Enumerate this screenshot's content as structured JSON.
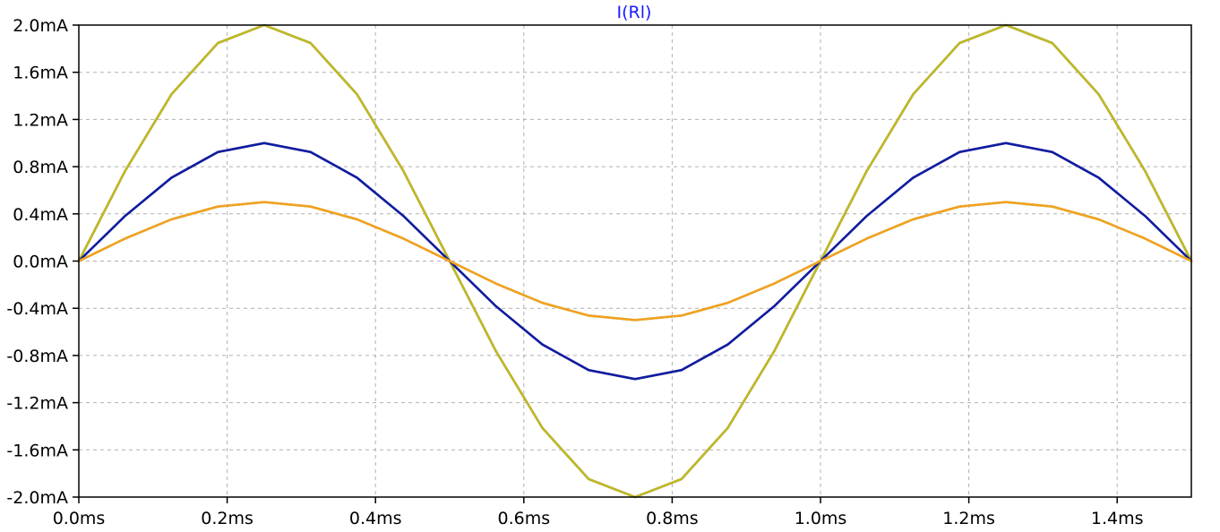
{
  "chart_data": {
    "type": "line",
    "title": "I(Rl)",
    "xlabel": "",
    "ylabel": "",
    "xlim": [
      0,
      1.5
    ],
    "ylim": [
      -2.0,
      2.0
    ],
    "grid": true,
    "x_ticks": [
      0.0,
      0.2,
      0.4,
      0.6,
      0.8,
      1.0,
      1.2,
      1.4
    ],
    "x_tick_labels": [
      "0.0ms",
      "0.2ms",
      "0.4ms",
      "0.6ms",
      "0.8ms",
      "1.0ms",
      "1.2ms",
      "1.4ms"
    ],
    "y_ticks": [
      2.0,
      1.6,
      1.2,
      0.8,
      0.4,
      0.0,
      -0.4,
      -0.8,
      -1.2,
      -1.6,
      -2.0
    ],
    "y_tick_labels": [
      "2.0mA",
      "1.6mA",
      "1.2mA",
      "0.8mA",
      "0.4mA",
      "0.0mA",
      "-0.4mA",
      "-0.8mA",
      "-1.2mA",
      "-1.6mA",
      "-2.0mA"
    ],
    "x_unit": "ms",
    "y_unit": "mA",
    "series": [
      {
        "amplitude": 2.0,
        "frequency_hz": 1000,
        "color": "#8b1a1a",
        "x": [
          0,
          0.0625,
          0.125,
          0.1875,
          0.25,
          0.3125,
          0.375,
          0.4375,
          0.5,
          0.5625,
          0.625,
          0.6875,
          0.75,
          0.8125,
          0.875,
          0.9375,
          1.0,
          1.0625,
          1.125,
          1.1875,
          1.25,
          1.3125,
          1.375,
          1.4375,
          1.5
        ],
        "values": [
          0,
          0.765,
          1.414,
          1.848,
          2.0,
          1.848,
          1.414,
          0.765,
          0,
          -0.765,
          -1.414,
          -1.848,
          -2.0,
          -1.848,
          -1.414,
          -0.765,
          0,
          0.765,
          1.414,
          1.848,
          2.0,
          1.848,
          1.414,
          0.765,
          0
        ]
      },
      {
        "amplitude": 2.0,
        "frequency_hz": 1000,
        "color": "#bcbc22",
        "x": [
          0,
          0.0625,
          0.125,
          0.1875,
          0.25,
          0.3125,
          0.375,
          0.4375,
          0.5,
          0.5625,
          0.625,
          0.6875,
          0.75,
          0.8125,
          0.875,
          0.9375,
          1.0,
          1.0625,
          1.125,
          1.1875,
          1.25,
          1.3125,
          1.375,
          1.4375,
          1.5
        ],
        "values": [
          0,
          0.765,
          1.414,
          1.848,
          2.0,
          1.848,
          1.414,
          0.765,
          0,
          -0.765,
          -1.414,
          -1.848,
          -2.0,
          -1.848,
          -1.414,
          -0.765,
          0,
          0.765,
          1.414,
          1.848,
          2.0,
          1.848,
          1.414,
          0.765,
          0
        ]
      },
      {
        "amplitude": 1.0,
        "frequency_hz": 1000,
        "color": "#8b008b",
        "x": [
          0,
          0.0625,
          0.125,
          0.1875,
          0.25,
          0.3125,
          0.375,
          0.4375,
          0.5,
          0.5625,
          0.625,
          0.6875,
          0.75,
          0.8125,
          0.875,
          0.9375,
          1.0,
          1.0625,
          1.125,
          1.1875,
          1.25,
          1.3125,
          1.375,
          1.4375,
          1.5
        ],
        "values": [
          0,
          0.383,
          0.707,
          0.924,
          1.0,
          0.924,
          0.707,
          0.383,
          0,
          -0.383,
          -0.707,
          -0.924,
          -1.0,
          -0.924,
          -0.707,
          -0.383,
          0,
          0.383,
          0.707,
          0.924,
          1.0,
          0.924,
          0.707,
          0.383,
          0
        ]
      },
      {
        "amplitude": 1.0,
        "frequency_hz": 1000,
        "color": "#0a1fa0",
        "x": [
          0,
          0.0625,
          0.125,
          0.1875,
          0.25,
          0.3125,
          0.375,
          0.4375,
          0.5,
          0.5625,
          0.625,
          0.6875,
          0.75,
          0.8125,
          0.875,
          0.9375,
          1.0,
          1.0625,
          1.125,
          1.1875,
          1.25,
          1.3125,
          1.375,
          1.4375,
          1.5
        ],
        "values": [
          0,
          0.383,
          0.707,
          0.924,
          1.0,
          0.924,
          0.707,
          0.383,
          0,
          -0.383,
          -0.707,
          -0.924,
          -1.0,
          -0.924,
          -0.707,
          -0.383,
          0,
          0.383,
          0.707,
          0.924,
          1.0,
          0.924,
          0.707,
          0.383,
          0
        ]
      },
      {
        "amplitude": 0.5,
        "frequency_hz": 1000,
        "color": "#5ab82a",
        "x": [
          0,
          0.0625,
          0.125,
          0.1875,
          0.25,
          0.3125,
          0.375,
          0.4375,
          0.5,
          0.5625,
          0.625,
          0.6875,
          0.75,
          0.8125,
          0.875,
          0.9375,
          1.0,
          1.0625,
          1.125,
          1.1875,
          1.25,
          1.3125,
          1.375,
          1.4375,
          1.5
        ],
        "values": [
          0,
          0.191,
          0.354,
          0.462,
          0.5,
          0.462,
          0.354,
          0.191,
          0,
          -0.191,
          -0.354,
          -0.462,
          -0.5,
          -0.462,
          -0.354,
          -0.191,
          0,
          0.191,
          0.354,
          0.462,
          0.5,
          0.462,
          0.354,
          0.191,
          0
        ]
      },
      {
        "amplitude": 0.5,
        "frequency_hz": 1000,
        "color": "#f5a020",
        "x": [
          0,
          0.0625,
          0.125,
          0.1875,
          0.25,
          0.3125,
          0.375,
          0.4375,
          0.5,
          0.5625,
          0.625,
          0.6875,
          0.75,
          0.8125,
          0.875,
          0.9375,
          1.0,
          1.0625,
          1.125,
          1.1875,
          1.25,
          1.3125,
          1.375,
          1.4375,
          1.5
        ],
        "values": [
          0,
          0.191,
          0.354,
          0.462,
          0.5,
          0.462,
          0.354,
          0.191,
          0,
          -0.191,
          -0.354,
          -0.462,
          -0.5,
          -0.462,
          -0.354,
          -0.191,
          0,
          0.191,
          0.354,
          0.462,
          0.5,
          0.462,
          0.354,
          0.191,
          0
        ]
      }
    ]
  },
  "colors": {
    "title": "#1a1aff",
    "axis": "#000000",
    "grid": "#b0b0b0",
    "background": "#ffffff"
  }
}
